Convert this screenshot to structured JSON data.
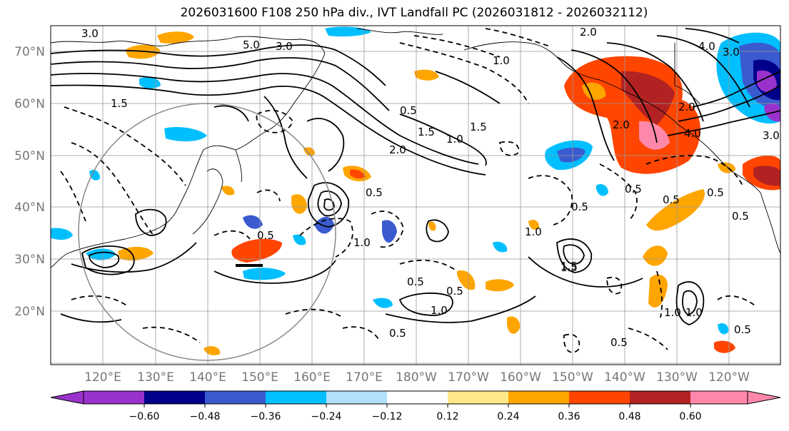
{
  "title": "2026031600 F108 250 hPa div., IVT Landfall PC (2026031812 - 2026032112)",
  "lat_labels": [
    "70°N",
    "60°N",
    "50°N",
    "40°N",
    "30°N",
    "20°N"
  ],
  "lon_labels": [
    "120°E",
    "130°E",
    "140°E",
    "150°E",
    "160°E",
    "170°E",
    "180°W",
    "170°W",
    "160°W",
    "150°W",
    "140°W",
    "130°W",
    "120°W"
  ],
  "colorbar": {
    "colors": [
      "#9932cc",
      "#00008b",
      "#3a5bd0",
      "#00bfff",
      "#b0e0fa",
      "#ffffff",
      "#ffe88a",
      "#ffa500",
      "#ff4500",
      "#b22222",
      "#ff88aa"
    ],
    "tick_labels": [
      "−0.60",
      "−0.48",
      "−0.36",
      "−0.24",
      "−0.12",
      "0.12",
      "0.24",
      "0.36",
      "0.48",
      "0.60"
    ]
  },
  "contour_labels": [
    "3.0",
    "5.0",
    "3.0",
    "2.0",
    "1.5",
    "1.0",
    "0.5",
    "1.5",
    "2.0",
    "1.0",
    "1.5",
    "2.0",
    "3.0",
    "4.0",
    "4.0",
    "3.0",
    "2.0",
    "0.5",
    "0.5",
    "1.0",
    "1.5",
    "0.5",
    "1.0",
    "0.5",
    "0.5",
    "0.5",
    "0.5",
    "1.0",
    "1.5",
    "0.5",
    "0.5",
    "0.5",
    "1.0",
    "1.0",
    "0.5",
    "0.5"
  ]
}
